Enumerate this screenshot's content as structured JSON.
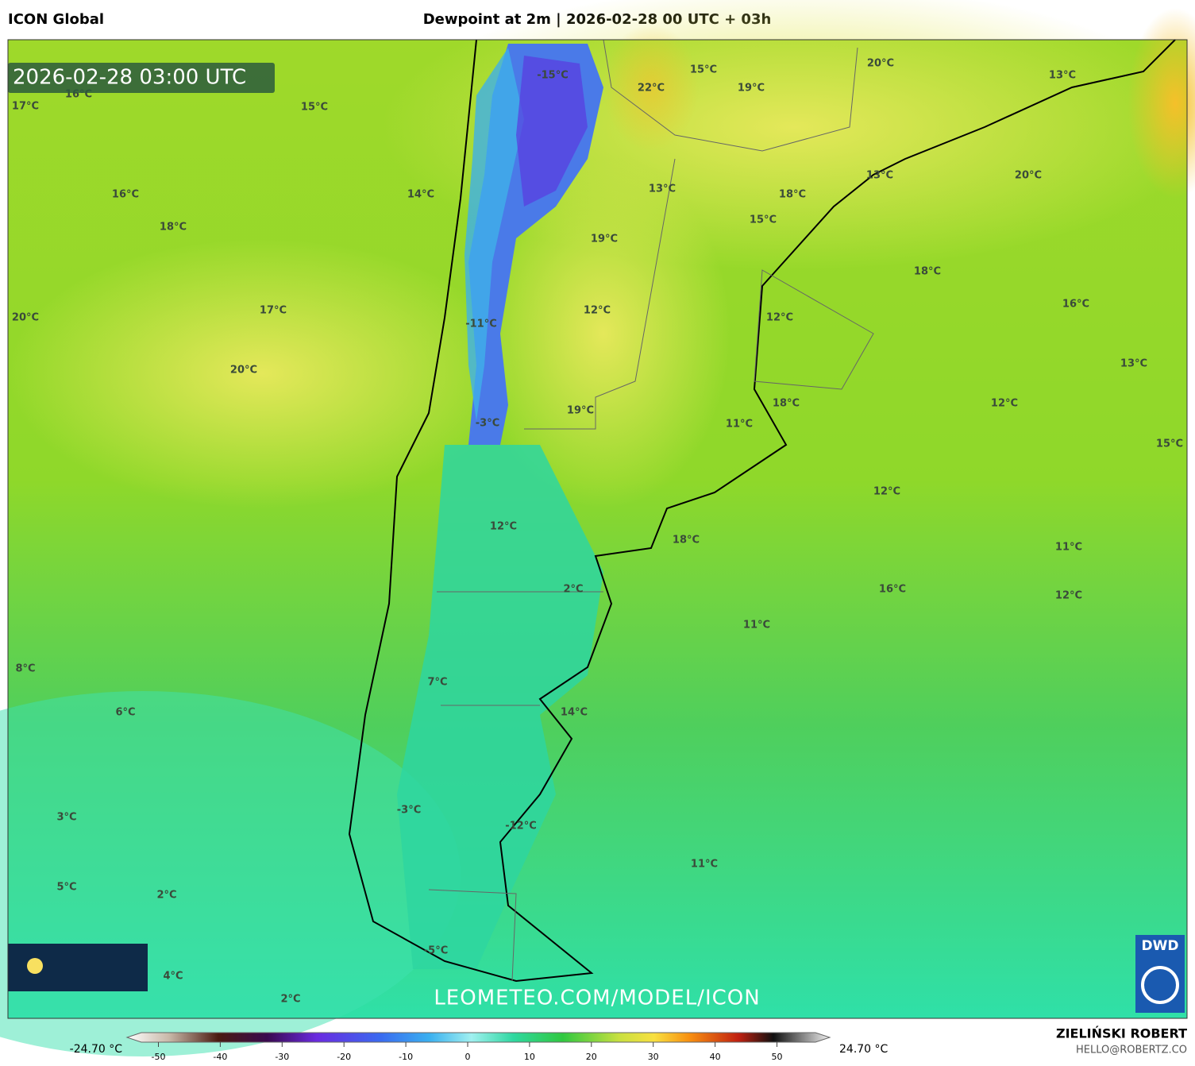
{
  "header": {
    "model": "ICON Global",
    "title": "Dewpoint at 2m | 2026-02-28 00 UTC + 03h"
  },
  "map": {
    "timestamp": "2026-02-28 03:00 UTC",
    "labels": [
      "17°C",
      "16°C",
      "15°C",
      "16°C",
      "14°C",
      "18°C",
      "17°C",
      "20°C",
      "20°C",
      "-15°C",
      "22°C",
      "15°C",
      "19°C",
      "20°C",
      "13°C",
      "13°C",
      "18°C",
      "13°C",
      "20°C",
      "15°C",
      "19°C",
      "18°C",
      "16°C",
      "12°C",
      "12°C",
      "-11°C",
      "13°C",
      "19°C",
      "18°C",
      "12°C",
      "11°C",
      "-3°C",
      "15°C",
      "12°C",
      "12°C",
      "18°C",
      "11°C",
      "2°C",
      "16°C",
      "12°C",
      "11°C",
      "8°C",
      "7°C",
      "6°C",
      "14°C",
      "3°C",
      "-3°C",
      "-12°C",
      "11°C",
      "5°C",
      "2°C",
      "-5°C",
      "4°C",
      "2°C"
    ],
    "watermark": "LEOMETEO.COM/MODEL/ICON",
    "logo": "DWD"
  },
  "colorbar": {
    "min_label": "-24.70 °C",
    "max_label": "24.70 °C",
    "ticks": [
      -50,
      -40,
      -30,
      -20,
      -10,
      0,
      10,
      20,
      30,
      40,
      50
    ]
  },
  "footer": {
    "author": "ZIELIŃSKI ROBERT",
    "contact": "HELLO@ROBERTZ.CO"
  }
}
